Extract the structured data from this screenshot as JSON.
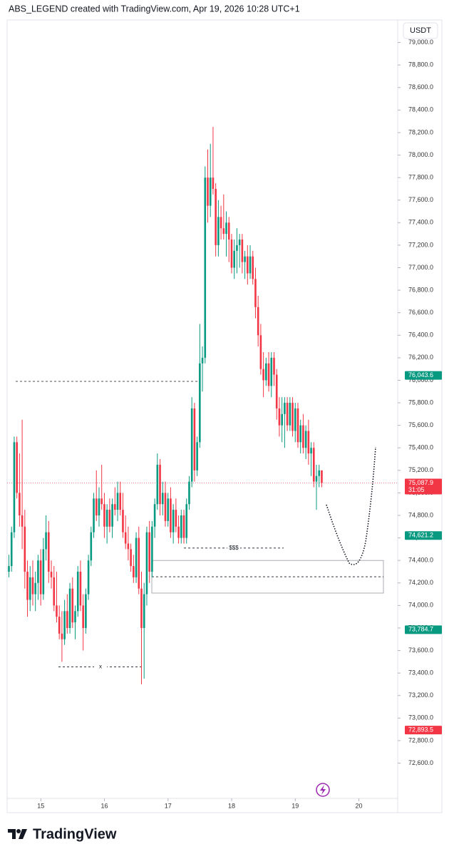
{
  "chart_data": {
    "type": "candlestick",
    "title": "ABS_LEGEND created with TradingView.com, Apr 19, 2026 10:28 UTC+1",
    "currency": "USDT",
    "up_color": "#089981",
    "down_color": "#f23645",
    "open": [
      74300,
      74350,
      74650,
      75450,
      75000,
      74800,
      74700,
      74300,
      74050,
      74250,
      74100,
      74200,
      74400,
      74100,
      74500,
      74650,
      74300,
      74250,
      74000,
      73900,
      73750,
      73700,
      73950,
      73800,
      74150,
      73850,
      73950,
      74300,
      74000,
      73800,
      74100,
      74400,
      74650,
      74950,
      74800,
      74950,
      74900,
      74700,
      74850,
      74700,
      74900,
      74850,
      75000,
      74850,
      74650,
      74550,
      74500,
      74350,
      74250,
      74600,
      74150,
      73800,
      74100,
      74650,
      74300,
      74700,
      74900,
      75250,
      74900,
      75000,
      74750,
      74950,
      74650,
      74850,
      74700,
      74600,
      74800,
      74600,
      74900,
      75100,
      75750,
      75200,
      75450,
      76150,
      76200,
      77800,
      77550,
      77800,
      77700,
      77200,
      77450,
      77350,
      77300,
      77400,
      77250,
      77000,
      77150,
      77200,
      77250,
      77050,
      77100,
      76950,
      77100,
      76900,
      76650,
      76400,
      76100,
      76000,
      76150,
      75950,
      76200,
      76050,
      75750,
      75600,
      75700,
      75800,
      75600,
      75800,
      75550,
      75750,
      75450,
      75600,
      75400,
      75550,
      75350,
      75400,
      75100,
      75150,
      75200
    ],
    "high": [
      74450,
      74700,
      75500,
      75500,
      75350,
      75650,
      74850,
      74400,
      74350,
      74400,
      74300,
      74450,
      74500,
      74600,
      74800,
      74750,
      74400,
      74350,
      74300,
      74000,
      73950,
      74050,
      74100,
      74200,
      74250,
      74000,
      74350,
      74400,
      74100,
      74150,
      74450,
      74700,
      75000,
      75200,
      75050,
      75250,
      75000,
      74900,
      74950,
      74950,
      75050,
      75100,
      75100,
      75000,
      74800,
      74700,
      74550,
      74450,
      74650,
      74700,
      74300,
      74200,
      74700,
      74750,
      74750,
      74950,
      75350,
      75300,
      75100,
      75100,
      75000,
      75050,
      74900,
      74950,
      74800,
      74850,
      74850,
      74950,
      75150,
      75850,
      75800,
      75500,
      76500,
      76300,
      77900,
      78050,
      78100,
      78250,
      77750,
      77600,
      77550,
      77650,
      77500,
      77450,
      77300,
      77250,
      77350,
      77300,
      77300,
      77150,
      77200,
      77200,
      77150,
      77000,
      76750,
      76500,
      76250,
      76200,
      76250,
      76250,
      76250,
      76100,
      75850,
      75850,
      75850,
      75850,
      75850,
      75850,
      75800,
      75800,
      75650,
      75700,
      75600,
      75650,
      75450,
      75450,
      75250,
      75250,
      75200
    ],
    "low": [
      74250,
      74300,
      74600,
      74950,
      74700,
      74500,
      74150,
      73900,
      73950,
      74000,
      73950,
      74050,
      74000,
      74050,
      74400,
      74200,
      74150,
      73950,
      73850,
      73700,
      73500,
      73650,
      73750,
      73750,
      73800,
      73700,
      73900,
      73950,
      73600,
      73750,
      74050,
      74350,
      74600,
      74750,
      74700,
      74850,
      74600,
      74550,
      74650,
      74600,
      74800,
      74750,
      74800,
      74600,
      74500,
      74400,
      74300,
      74200,
      74200,
      74100,
      73300,
      73350,
      74000,
      74200,
      74250,
      74600,
      74850,
      74800,
      74800,
      74700,
      74700,
      74600,
      74550,
      74650,
      74550,
      74550,
      74550,
      74550,
      74850,
      75050,
      75100,
      75150,
      75400,
      75900,
      76150,
      77400,
      77450,
      77650,
      77100,
      77100,
      77250,
      77250,
      77100,
      77050,
      76950,
      76900,
      76950,
      77000,
      76950,
      76900,
      76850,
      76900,
      76850,
      76550,
      76300,
      76050,
      75850,
      75950,
      75900,
      75850,
      75950,
      75650,
      75500,
      75450,
      75400,
      75550,
      75550,
      75500,
      75450,
      75400,
      75350,
      75350,
      75300,
      75250,
      75150,
      75050,
      74850,
      75050,
      75050
    ],
    "close": [
      74350,
      74650,
      75450,
      75000,
      74800,
      74700,
      74300,
      74050,
      74250,
      74100,
      74200,
      74400,
      74100,
      74500,
      74650,
      74300,
      74250,
      74000,
      73900,
      73750,
      73700,
      73950,
      73800,
      74150,
      73850,
      73950,
      74300,
      74000,
      73800,
      74100,
      74400,
      74650,
      74950,
      74800,
      74950,
      74900,
      74700,
      74850,
      74700,
      74900,
      74850,
      75000,
      74850,
      74650,
      74550,
      74500,
      74350,
      74250,
      74600,
      74150,
      73800,
      74100,
      74650,
      74300,
      74700,
      74900,
      75250,
      74900,
      75000,
      74750,
      74950,
      74650,
      74850,
      74700,
      74600,
      74800,
      74600,
      74900,
      75100,
      75750,
      75200,
      75450,
      76150,
      76200,
      77800,
      77550,
      77800,
      77700,
      77200,
      77450,
      77350,
      77300,
      77400,
      77250,
      77000,
      77150,
      77200,
      77250,
      77050,
      77100,
      76950,
      77100,
      76900,
      76650,
      76400,
      76100,
      76000,
      76150,
      75950,
      76200,
      76050,
      75750,
      75600,
      75700,
      75800,
      75600,
      75800,
      75550,
      75750,
      75450,
      75600,
      75400,
      75550,
      75350,
      75400,
      75100,
      75150,
      75200,
      75087.9
    ],
    "ylim": [
      72160,
      79200
    ],
    "yticks": [
      {
        "value": 72600,
        "label": "72,600.0"
      },
      {
        "value": 72800,
        "label": "72,800.0"
      },
      {
        "value": 73000,
        "label": "73,000.0"
      },
      {
        "value": 73200,
        "label": "73,200.0"
      },
      {
        "value": 73400,
        "label": "73,400.0"
      },
      {
        "value": 73600,
        "label": "73,600.0"
      },
      {
        "value": 73800,
        "label": "73,800.0"
      },
      {
        "value": 74000,
        "label": "74,000.0"
      },
      {
        "value": 74200,
        "label": "74,200.0"
      },
      {
        "value": 74400,
        "label": "74,400.0"
      },
      {
        "value": 74600,
        "label": "74,600.0"
      },
      {
        "value": 74800,
        "label": "74,800.0"
      },
      {
        "value": 75000,
        "label": "75,000.0"
      },
      {
        "value": 75200,
        "label": "75,200.0"
      },
      {
        "value": 75400,
        "label": "75,400.0"
      },
      {
        "value": 75600,
        "label": "75,600.0"
      },
      {
        "value": 75800,
        "label": "75,800.0"
      },
      {
        "value": 76000,
        "label": "76,000.0"
      },
      {
        "value": 76200,
        "label": "76,200.0"
      },
      {
        "value": 76400,
        "label": "76,400.0"
      },
      {
        "value": 76600,
        "label": "76,600.0"
      },
      {
        "value": 76800,
        "label": "76,800.0"
      },
      {
        "value": 77000,
        "label": "77,000.0"
      },
      {
        "value": 77200,
        "label": "77,200.0"
      },
      {
        "value": 77400,
        "label": "77,400.0"
      },
      {
        "value": 77600,
        "label": "77,600.0"
      },
      {
        "value": 77800,
        "label": "77,800.0"
      },
      {
        "value": 78000,
        "label": "78,000.0"
      },
      {
        "value": 78200,
        "label": "78,200.0"
      },
      {
        "value": 78400,
        "label": "78,400.0"
      },
      {
        "value": 78600,
        "label": "78,600.0"
      },
      {
        "value": 78800,
        "label": "78,800.0"
      },
      {
        "value": 79000,
        "label": "79,000.0"
      }
    ],
    "xlim": [
      14.47,
      20.61
    ],
    "xticks": [
      15,
      16,
      17,
      18,
      19,
      20
    ],
    "price_labels": [
      {
        "value": 76043.6,
        "label": "76,043.6",
        "color": "#089981"
      },
      {
        "value": 75087.9,
        "label": "75,087.9",
        "color": "#f23645",
        "countdown": "31:05"
      },
      {
        "value": 74621.2,
        "label": "74,621.2",
        "color": "#089981"
      },
      {
        "value": 73784.7,
        "label": "73,784.7",
        "color": "#089981"
      },
      {
        "value": 72893.5,
        "label": "72,893.5",
        "color": "#f23645"
      }
    ],
    "levels": [
      {
        "value": 75990
      },
      {
        "value": 74510,
        "label": "$$$"
      },
      {
        "value": 73455,
        "label": "x"
      }
    ],
    "zone": {
      "top": 74400,
      "bottom": 74110,
      "mid": 74255
    }
  },
  "brand": "TradingView"
}
